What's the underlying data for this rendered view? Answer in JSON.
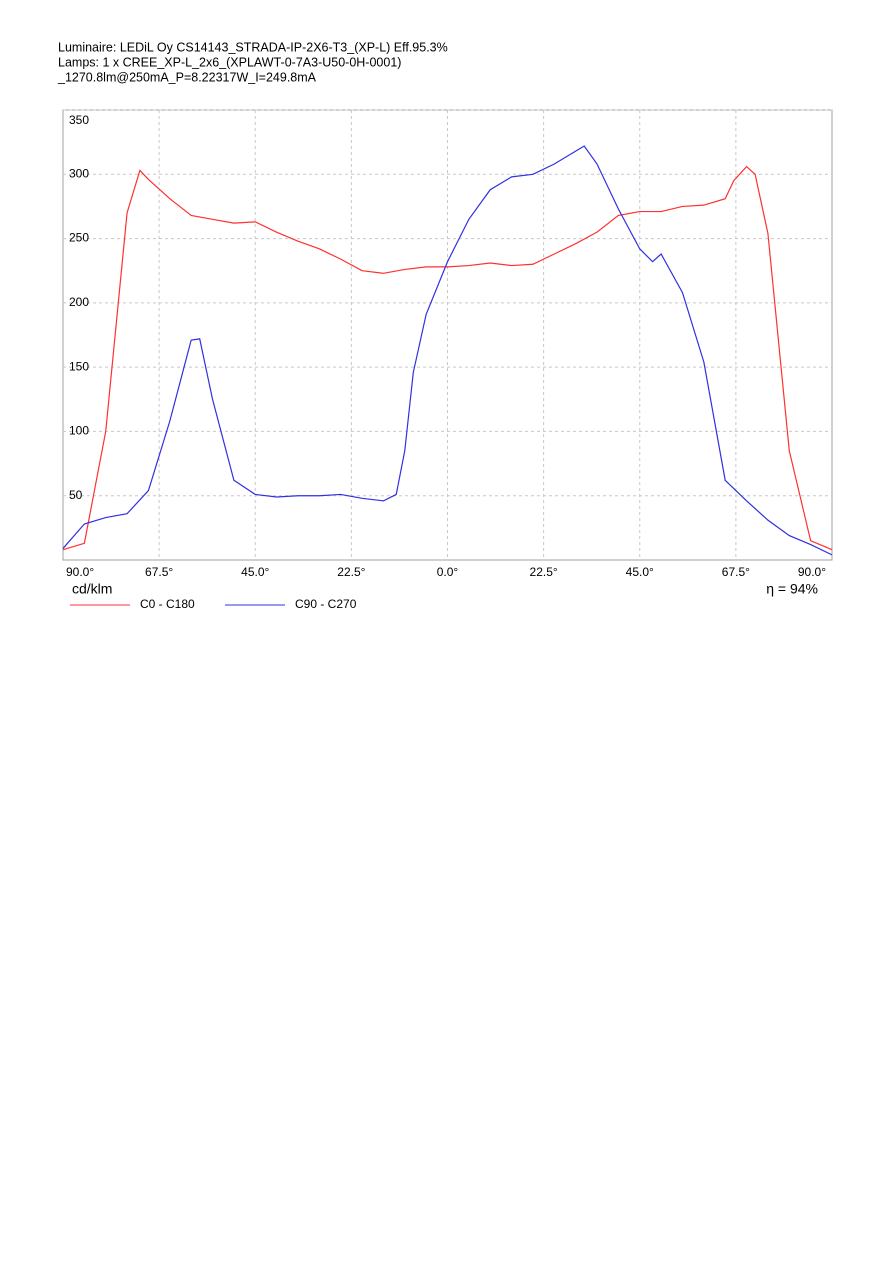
{
  "chart_data": {
    "type": "line",
    "title": "Luminaire: LEDiL Oy CS14143_STRADA-IP-2X6-T3_(XP-L) Eff.95.3%",
    "subtitle": [
      "Lamps: 1 x CREE_XP-L_2x6_(XPLAWT-0-7A3-U50-0H-0001)",
      "_1270.8lm@250mA_P=8.22317W_I=249.8mA"
    ],
    "y_label": "cd/klm",
    "annotation": "η = 94%",
    "xlim": [
      -90,
      90
    ],
    "ylim": [
      0,
      350
    ],
    "xticks": [
      {
        "value": -90,
        "label": "90.0°"
      },
      {
        "value": -67.5,
        "label": "67.5°"
      },
      {
        "value": -45,
        "label": "45.0°"
      },
      {
        "value": -22.5,
        "label": "22.5°"
      },
      {
        "value": 0,
        "label": "0.0°"
      },
      {
        "value": 22.5,
        "label": "22.5°"
      },
      {
        "value": 45,
        "label": "45.0°"
      },
      {
        "value": 67.5,
        "label": "67.5°"
      },
      {
        "value": 90,
        "label": "90.0°"
      }
    ],
    "yticks": [
      50,
      100,
      150,
      200,
      250,
      300,
      350
    ],
    "grid": true,
    "legend": "bottom",
    "series": [
      {
        "name": "C0 - C180",
        "color": "#ff3030",
        "x": [
          -90,
          -85,
          -80,
          -75,
          -72,
          -70,
          -65,
          -60,
          -55,
          -50,
          -45,
          -40,
          -35,
          -30,
          -25,
          -20,
          -15,
          -10,
          -5,
          0,
          5,
          10,
          15,
          20,
          25,
          30,
          35,
          40,
          45,
          50,
          55,
          60,
          65,
          67,
          70,
          72,
          75,
          80,
          85,
          90
        ],
        "values": [
          8,
          13,
          100,
          270,
          303,
          296,
          281,
          268,
          265,
          262,
          263,
          255,
          248,
          242,
          234,
          225,
          223,
          226,
          228,
          228,
          229,
          231,
          229,
          230,
          238,
          246,
          255,
          268,
          271,
          271,
          275,
          276,
          281,
          295,
          306,
          300,
          254,
          85,
          15,
          8
        ]
      },
      {
        "name": "C90 - C270",
        "color": "#3030e0",
        "x": [
          -90,
          -85,
          -80,
          -75,
          -70,
          -65,
          -60,
          -58,
          -55,
          -50,
          -45,
          -40,
          -35,
          -30,
          -25,
          -20,
          -15,
          -12,
          -10,
          -8,
          -5,
          0,
          5,
          10,
          15,
          20,
          25,
          30,
          32,
          35,
          40,
          45,
          48,
          50,
          55,
          60,
          65,
          70,
          75,
          80,
          85,
          90
        ],
        "values": [
          9,
          28,
          33,
          36,
          54,
          108,
          171,
          172,
          125,
          62,
          51,
          49,
          50,
          50,
          51,
          48,
          46,
          51,
          85,
          146,
          191,
          232,
          265,
          288,
          298,
          300,
          308,
          318,
          322,
          308,
          273,
          242,
          232,
          238,
          208,
          154,
          62,
          46,
          31,
          19,
          12,
          4
        ]
      }
    ]
  }
}
